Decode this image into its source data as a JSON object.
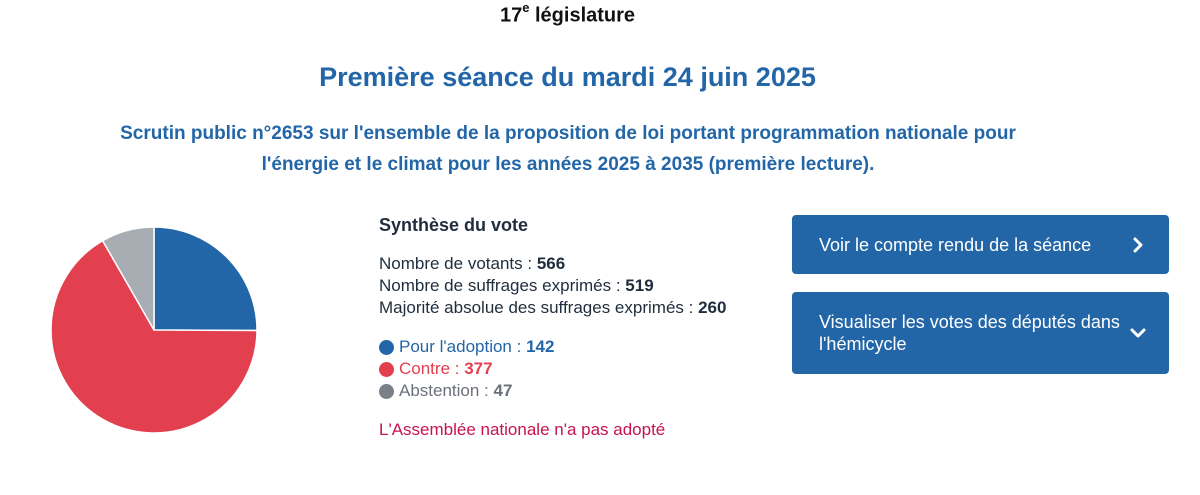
{
  "header": {
    "legislature_number": "17",
    "legislature_suffix": "e",
    "legislature_label": "législature",
    "seance_title": "Première séance du mardi 24 juin 2025",
    "scrutin_title": "Scrutin public n°2653 sur l'ensemble de la proposition de loi portant programmation nationale pour l'énergie et le climat pour les années 2025 à 2035 (première lecture)."
  },
  "synthese": {
    "title": "Synthèse du vote",
    "votants_label": "Nombre de votants : ",
    "votants_value": "566",
    "exprimes_label": "Nombre de suffrages exprimés : ",
    "exprimes_value": "519",
    "majorite_label": "Majorité absolue des suffrages exprimés : ",
    "majorite_value": "260"
  },
  "legend": {
    "pour_label": "Pour l'adoption : ",
    "pour_value": "142",
    "contre_label": "Contre : ",
    "contre_value": "377",
    "abstention_label": "Abstention : ",
    "abstention_value": "47"
  },
  "result": "L'Assemblée nationale n'a pas adopté",
  "buttons": {
    "compte_rendu": "Voir le compte rendu de la séance",
    "hemicycle": "Visualiser les votes des députés dans l'hémicycle"
  },
  "colors": {
    "title_blue": "#2366a8",
    "pour": "#2366a8",
    "contre": "#e2404f",
    "abstention": "#a8adb3",
    "abstention_dot": "#7a8088",
    "result_red": "#c7134b",
    "button_bg": "#2366a8"
  },
  "chart_data": {
    "type": "pie",
    "title": "",
    "slices": [
      {
        "label": "Pour l'adoption",
        "value": 142,
        "color": "#2366a8"
      },
      {
        "label": "Contre",
        "value": 377,
        "color": "#e2404f"
      },
      {
        "label": "Abstention",
        "value": 47,
        "color": "#a8adb3"
      }
    ]
  }
}
